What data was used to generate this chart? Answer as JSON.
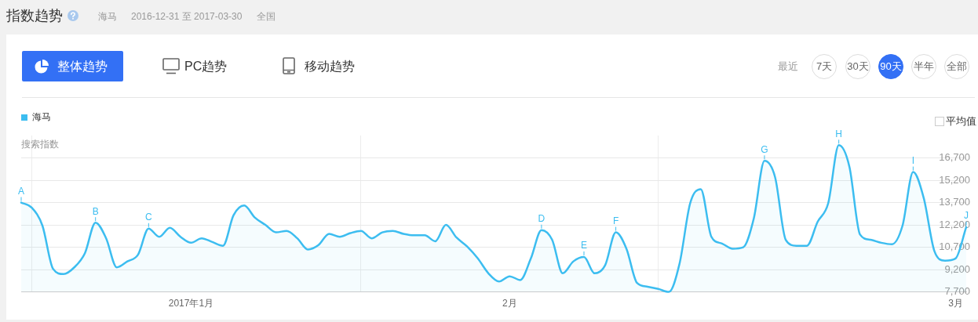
{
  "chart_data": {
    "type": "area",
    "title": "指数趋势",
    "subtitle": "2016-12-31 至 2017-03-30",
    "ylabel": "搜索指数",
    "x": [
      "2016-12-31",
      "2017-01-01",
      "2017-01-02",
      "2017-01-03",
      "2017-01-04",
      "2017-01-05",
      "2017-01-06",
      "2017-01-07",
      "2017-01-08",
      "2017-01-09",
      "2017-01-10",
      "2017-01-11",
      "2017-01-12",
      "2017-01-13",
      "2017-01-14",
      "2017-01-15",
      "2017-01-16",
      "2017-01-17",
      "2017-01-18",
      "2017-01-19",
      "2017-01-20",
      "2017-01-21",
      "2017-01-22",
      "2017-01-23",
      "2017-01-24",
      "2017-01-25",
      "2017-01-26",
      "2017-01-27",
      "2017-01-28",
      "2017-01-29",
      "2017-01-30",
      "2017-01-31",
      "2017-02-01",
      "2017-02-02",
      "2017-02-03",
      "2017-02-04",
      "2017-02-05",
      "2017-02-06",
      "2017-02-07",
      "2017-02-08",
      "2017-02-09",
      "2017-02-10",
      "2017-02-11",
      "2017-02-12",
      "2017-02-13",
      "2017-02-14",
      "2017-02-15",
      "2017-02-16",
      "2017-02-17",
      "2017-02-18",
      "2017-02-19",
      "2017-02-20",
      "2017-02-21",
      "2017-02-22",
      "2017-02-23",
      "2017-02-24",
      "2017-02-25",
      "2017-02-26",
      "2017-02-27",
      "2017-02-28",
      "2017-03-01",
      "2017-03-02",
      "2017-03-03",
      "2017-03-04",
      "2017-03-05",
      "2017-03-06",
      "2017-03-07",
      "2017-03-08",
      "2017-03-09",
      "2017-03-10",
      "2017-03-11",
      "2017-03-12",
      "2017-03-13",
      "2017-03-14",
      "2017-03-15",
      "2017-03-16",
      "2017-03-17",
      "2017-03-18",
      "2017-03-19",
      "2017-03-20",
      "2017-03-21",
      "2017-03-22",
      "2017-03-23",
      "2017-03-24",
      "2017-03-25",
      "2017-03-26",
      "2017-03-27",
      "2017-03-28",
      "2017-03-29",
      "2017-03-30"
    ],
    "series": [
      {
        "name": "海马",
        "color": "#3cbdf0",
        "values": [
          13700,
          13350,
          12150,
          9250,
          8900,
          9350,
          10300,
          12350,
          11300,
          9350,
          9750,
          10200,
          11950,
          11400,
          12000,
          11400,
          11000,
          11300,
          11050,
          10800,
          12850,
          13500,
          12700,
          12200,
          11700,
          11800,
          11300,
          10550,
          10850,
          11600,
          11400,
          11650,
          11800,
          11300,
          11700,
          11800,
          11600,
          11500,
          11500,
          11100,
          12200,
          11350,
          10750,
          9950,
          8950,
          8400,
          8750,
          8500,
          9950,
          11850,
          11200,
          8950,
          9750,
          10050,
          8950,
          9500,
          11700,
          10600,
          8300,
          8050,
          7900,
          7700,
          9600,
          13650,
          14600,
          11400,
          10950,
          10600,
          10700,
          12650,
          16500,
          15400,
          11200,
          10800,
          10800,
          12400,
          13650,
          17550,
          16100,
          11550,
          11200,
          11000,
          10900,
          12150,
          15750,
          14000,
          10450,
          9800,
          9950,
          12050
        ]
      }
    ],
    "xlim": [
      "2016-12-31",
      "2017-03-30"
    ],
    "xticks": [
      {
        "value": "2017-01-01",
        "label": null
      },
      {
        "value": "2017-01-16",
        "label": "2017年1月"
      },
      {
        "value": "2017-02-01",
        "label": null
      },
      {
        "value": "2017-02-15",
        "label": "2月"
      },
      {
        "value": "2017-03-01",
        "label": null
      },
      {
        "value": "2017-03-29",
        "label": "3月"
      }
    ],
    "ylim": [
      7700,
      18200
    ],
    "yticks": [
      {
        "value": 7700,
        "label": "7,700"
      },
      {
        "value": 9200,
        "label": "9,200"
      },
      {
        "value": 10700,
        "label": "10,700"
      },
      {
        "value": 12200,
        "label": "12,200"
      },
      {
        "value": 13700,
        "label": "13,700"
      },
      {
        "value": 15200,
        "label": "15,200"
      },
      {
        "value": 16700,
        "label": "16,700"
      }
    ],
    "grid": true,
    "legend": "top left",
    "annotations": [
      "海马",
      "全国",
      "整体趋势",
      "PC趋势",
      "移动趋势",
      "最近",
      "7天",
      "30天",
      "90天",
      "半年",
      "全部",
      "平均值",
      {
        "text": "A",
        "x": "2016-12-31",
        "y": 13700
      },
      {
        "text": "B",
        "x": "2017-01-07",
        "y": 12350
      },
      {
        "text": "C",
        "x": "2017-01-12",
        "y": 11950
      },
      {
        "text": "D",
        "x": "2017-02-18",
        "y": 11850
      },
      {
        "text": "E",
        "x": "2017-02-22",
        "y": 10050
      },
      {
        "text": "F",
        "x": "2017-02-25",
        "y": 11700
      },
      {
        "text": "G",
        "x": "2017-03-11",
        "y": 16500
      },
      {
        "text": "H",
        "x": "2017-03-18",
        "y": 17550
      },
      {
        "text": "I",
        "x": "2017-03-25",
        "y": 15750
      },
      {
        "text": "J",
        "x": "2017-03-30",
        "y": 12050
      }
    ]
  }
}
